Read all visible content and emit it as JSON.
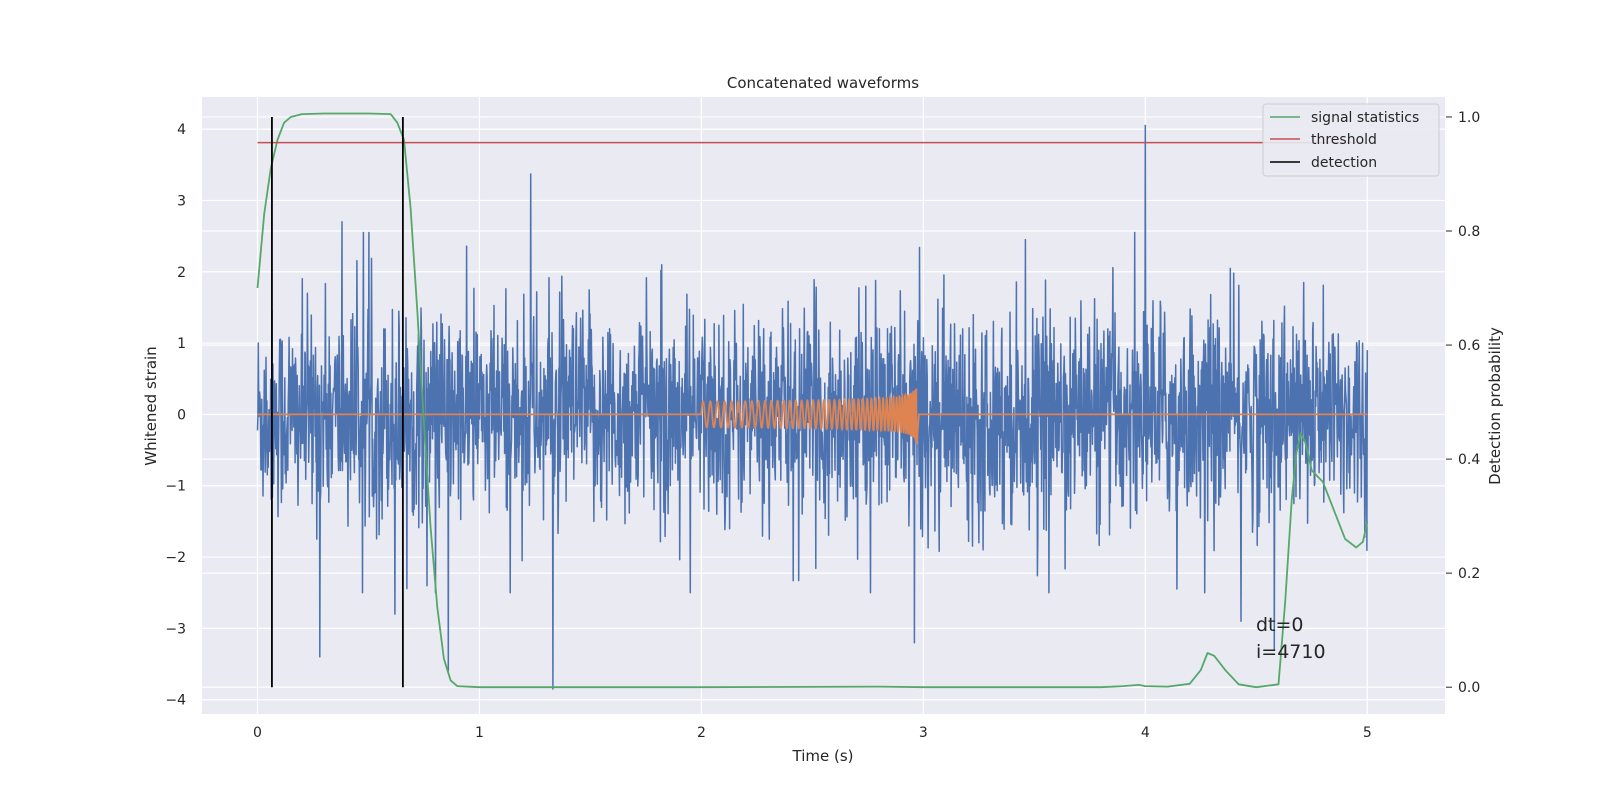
{
  "chart_data": {
    "type": "line",
    "title": "Concatenated waveforms",
    "xlabel": "Time (s)",
    "ylabel": "Whitened strain",
    "y2label": "Detection probability",
    "xlim": [
      -0.25,
      5.35
    ],
    "ylim": [
      -4.2,
      4.45
    ],
    "y2lim": [
      -0.047,
      1.035
    ],
    "xticks": [
      0,
      1,
      2,
      3,
      4,
      5
    ],
    "yticks": [
      -4,
      -3,
      -2,
      -1,
      0,
      1,
      2,
      3,
      4
    ],
    "y2ticks": [
      0.0,
      0.2,
      0.4,
      0.6,
      0.8,
      1.0
    ],
    "grid": true,
    "legend_position": "top-right",
    "colors": {
      "background": "#eaeaf2",
      "strain": "#4c72b0",
      "template": "#dd8452",
      "signal_statistics": "#55a868",
      "threshold": "#c44e52",
      "detection": "#000000"
    },
    "series": [
      {
        "name": "signal statistics",
        "axis": "right",
        "x": [
          0,
          0.03,
          0.06,
          0.09,
          0.12,
          0.15,
          0.2,
          0.3,
          0.5,
          0.6,
          0.63,
          0.66,
          0.69,
          0.72,
          0.75,
          0.78,
          0.81,
          0.84,
          0.87,
          0.9,
          1.0,
          2.0,
          2.8,
          3.0,
          3.8,
          3.9,
          3.97,
          4.0,
          4.1,
          4.2,
          4.25,
          4.28,
          4.31,
          4.36,
          4.42,
          4.5,
          4.6,
          4.63,
          4.66,
          4.68,
          4.7,
          4.72,
          4.75,
          4.8,
          4.85,
          4.9,
          4.95,
          4.98,
          5.0
        ],
        "y": [
          0.7,
          0.83,
          0.91,
          0.96,
          0.99,
          1.0,
          1.005,
          1.006,
          1.006,
          1.005,
          0.99,
          0.96,
          0.84,
          0.66,
          0.46,
          0.28,
          0.14,
          0.05,
          0.012,
          0.002,
          0.0,
          0.0,
          0.001,
          0.0,
          0.0,
          0.002,
          0.004,
          0.002,
          0.001,
          0.006,
          0.03,
          0.06,
          0.055,
          0.03,
          0.005,
          0.0,
          0.005,
          0.15,
          0.33,
          0.41,
          0.445,
          0.43,
          0.38,
          0.36,
          0.31,
          0.26,
          0.245,
          0.255,
          0.29
        ]
      },
      {
        "name": "threshold",
        "axis": "right",
        "x": [
          0,
          5
        ],
        "y": [
          0.955,
          0.955
        ]
      },
      {
        "name": "detection",
        "axis": "right",
        "x": [
          0.065,
          0.655
        ],
        "y": [
          0,
          1
        ]
      }
    ],
    "strain": {
      "axis": "left",
      "x_range": [
        0,
        5
      ],
      "typical_amplitude": 1.6,
      "spikes": [
        {
          "x": 0.28,
          "y": -3.4
        },
        {
          "x": 0.38,
          "y": 2.7
        },
        {
          "x": 0.62,
          "y": -2.8
        },
        {
          "x": 0.86,
          "y": -3.6
        },
        {
          "x": 1.23,
          "y": 3.37
        },
        {
          "x": 1.33,
          "y": -3.85
        },
        {
          "x": 2.96,
          "y": -3.2
        },
        {
          "x": 4.0,
          "y": 4.05
        },
        {
          "x": 4.58,
          "y": -3.3
        },
        {
          "x": 4.43,
          "y": -2.9
        }
      ]
    },
    "template": {
      "axis": "left",
      "chirp_start": 2.0,
      "chirp_end": 2.97,
      "peak_amplitude": 0.45
    },
    "annotations": [
      "dt=0",
      "i=4710"
    ]
  }
}
